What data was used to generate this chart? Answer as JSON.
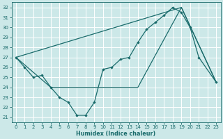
{
  "xlabel": "Humidex (Indice chaleur)",
  "xlim": [
    -0.5,
    23.5
  ],
  "ylim": [
    20.5,
    32.5
  ],
  "yticks": [
    21,
    22,
    23,
    24,
    25,
    26,
    27,
    28,
    29,
    30,
    31,
    32
  ],
  "xticks": [
    0,
    1,
    2,
    3,
    4,
    5,
    6,
    7,
    8,
    9,
    10,
    11,
    12,
    13,
    14,
    15,
    16,
    17,
    18,
    19,
    20,
    21,
    22,
    23
  ],
  "bg_color": "#cce8e8",
  "line_color": "#1a6b6b",
  "grid_color": "#ffffff",
  "line1_x": [
    0,
    1,
    2,
    3,
    4,
    5,
    6,
    7,
    8,
    9,
    10,
    11,
    12,
    13,
    14,
    15,
    16,
    17,
    18,
    19,
    20,
    21,
    23
  ],
  "line1_y": [
    27.0,
    26.0,
    25.0,
    25.2,
    24.0,
    23.0,
    22.5,
    21.2,
    21.2,
    22.5,
    25.8,
    26.0,
    26.8,
    27.0,
    28.5,
    29.8,
    30.5,
    31.2,
    32.0,
    31.5,
    30.0,
    27.0,
    24.5
  ],
  "line2_x": [
    0,
    19,
    23
  ],
  "line2_y": [
    27.0,
    32.0,
    24.5
  ],
  "line3_x": [
    0,
    4,
    14,
    19,
    23
  ],
  "line3_y": [
    27.0,
    24.0,
    24.0,
    32.0,
    24.5
  ]
}
